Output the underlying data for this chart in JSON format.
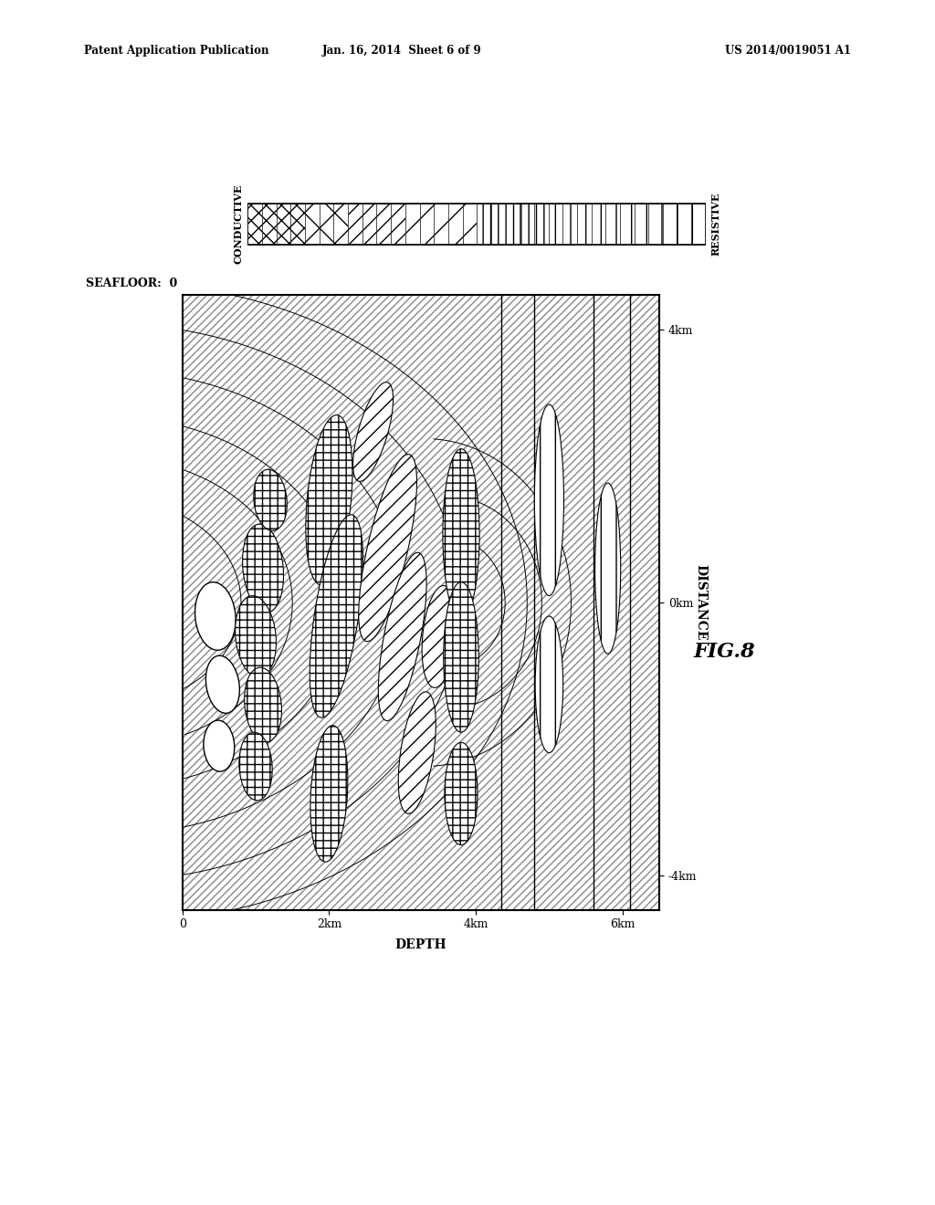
{
  "header_left": "Patent Application Publication",
  "header_center": "Jan. 16, 2014  Sheet 6 of 9",
  "header_right": "US 2014/0019051 A1",
  "colorbar_label_left": "CONDUCTIVE",
  "colorbar_label_right": "RESISTIVE",
  "seafloor_label": "SEAFLOOR:  0",
  "x_axis_label": "DEPTH",
  "y_axis_label": "DISTANCE",
  "x_ticks": [
    0,
    2,
    4,
    6
  ],
  "x_tick_labels": [
    "0",
    "2km",
    "4km",
    "6km"
  ],
  "y_ticks": [
    -4,
    0,
    4
  ],
  "y_tick_labels": [
    "-4km",
    "0km",
    "4km"
  ],
  "fig_label": "FIG.8",
  "bg_color": "#ffffff",
  "hatch_bg_color": "#d8d8d8",
  "depth_max": 6.5,
  "dist_min": -4.5,
  "dist_max": 4.5
}
